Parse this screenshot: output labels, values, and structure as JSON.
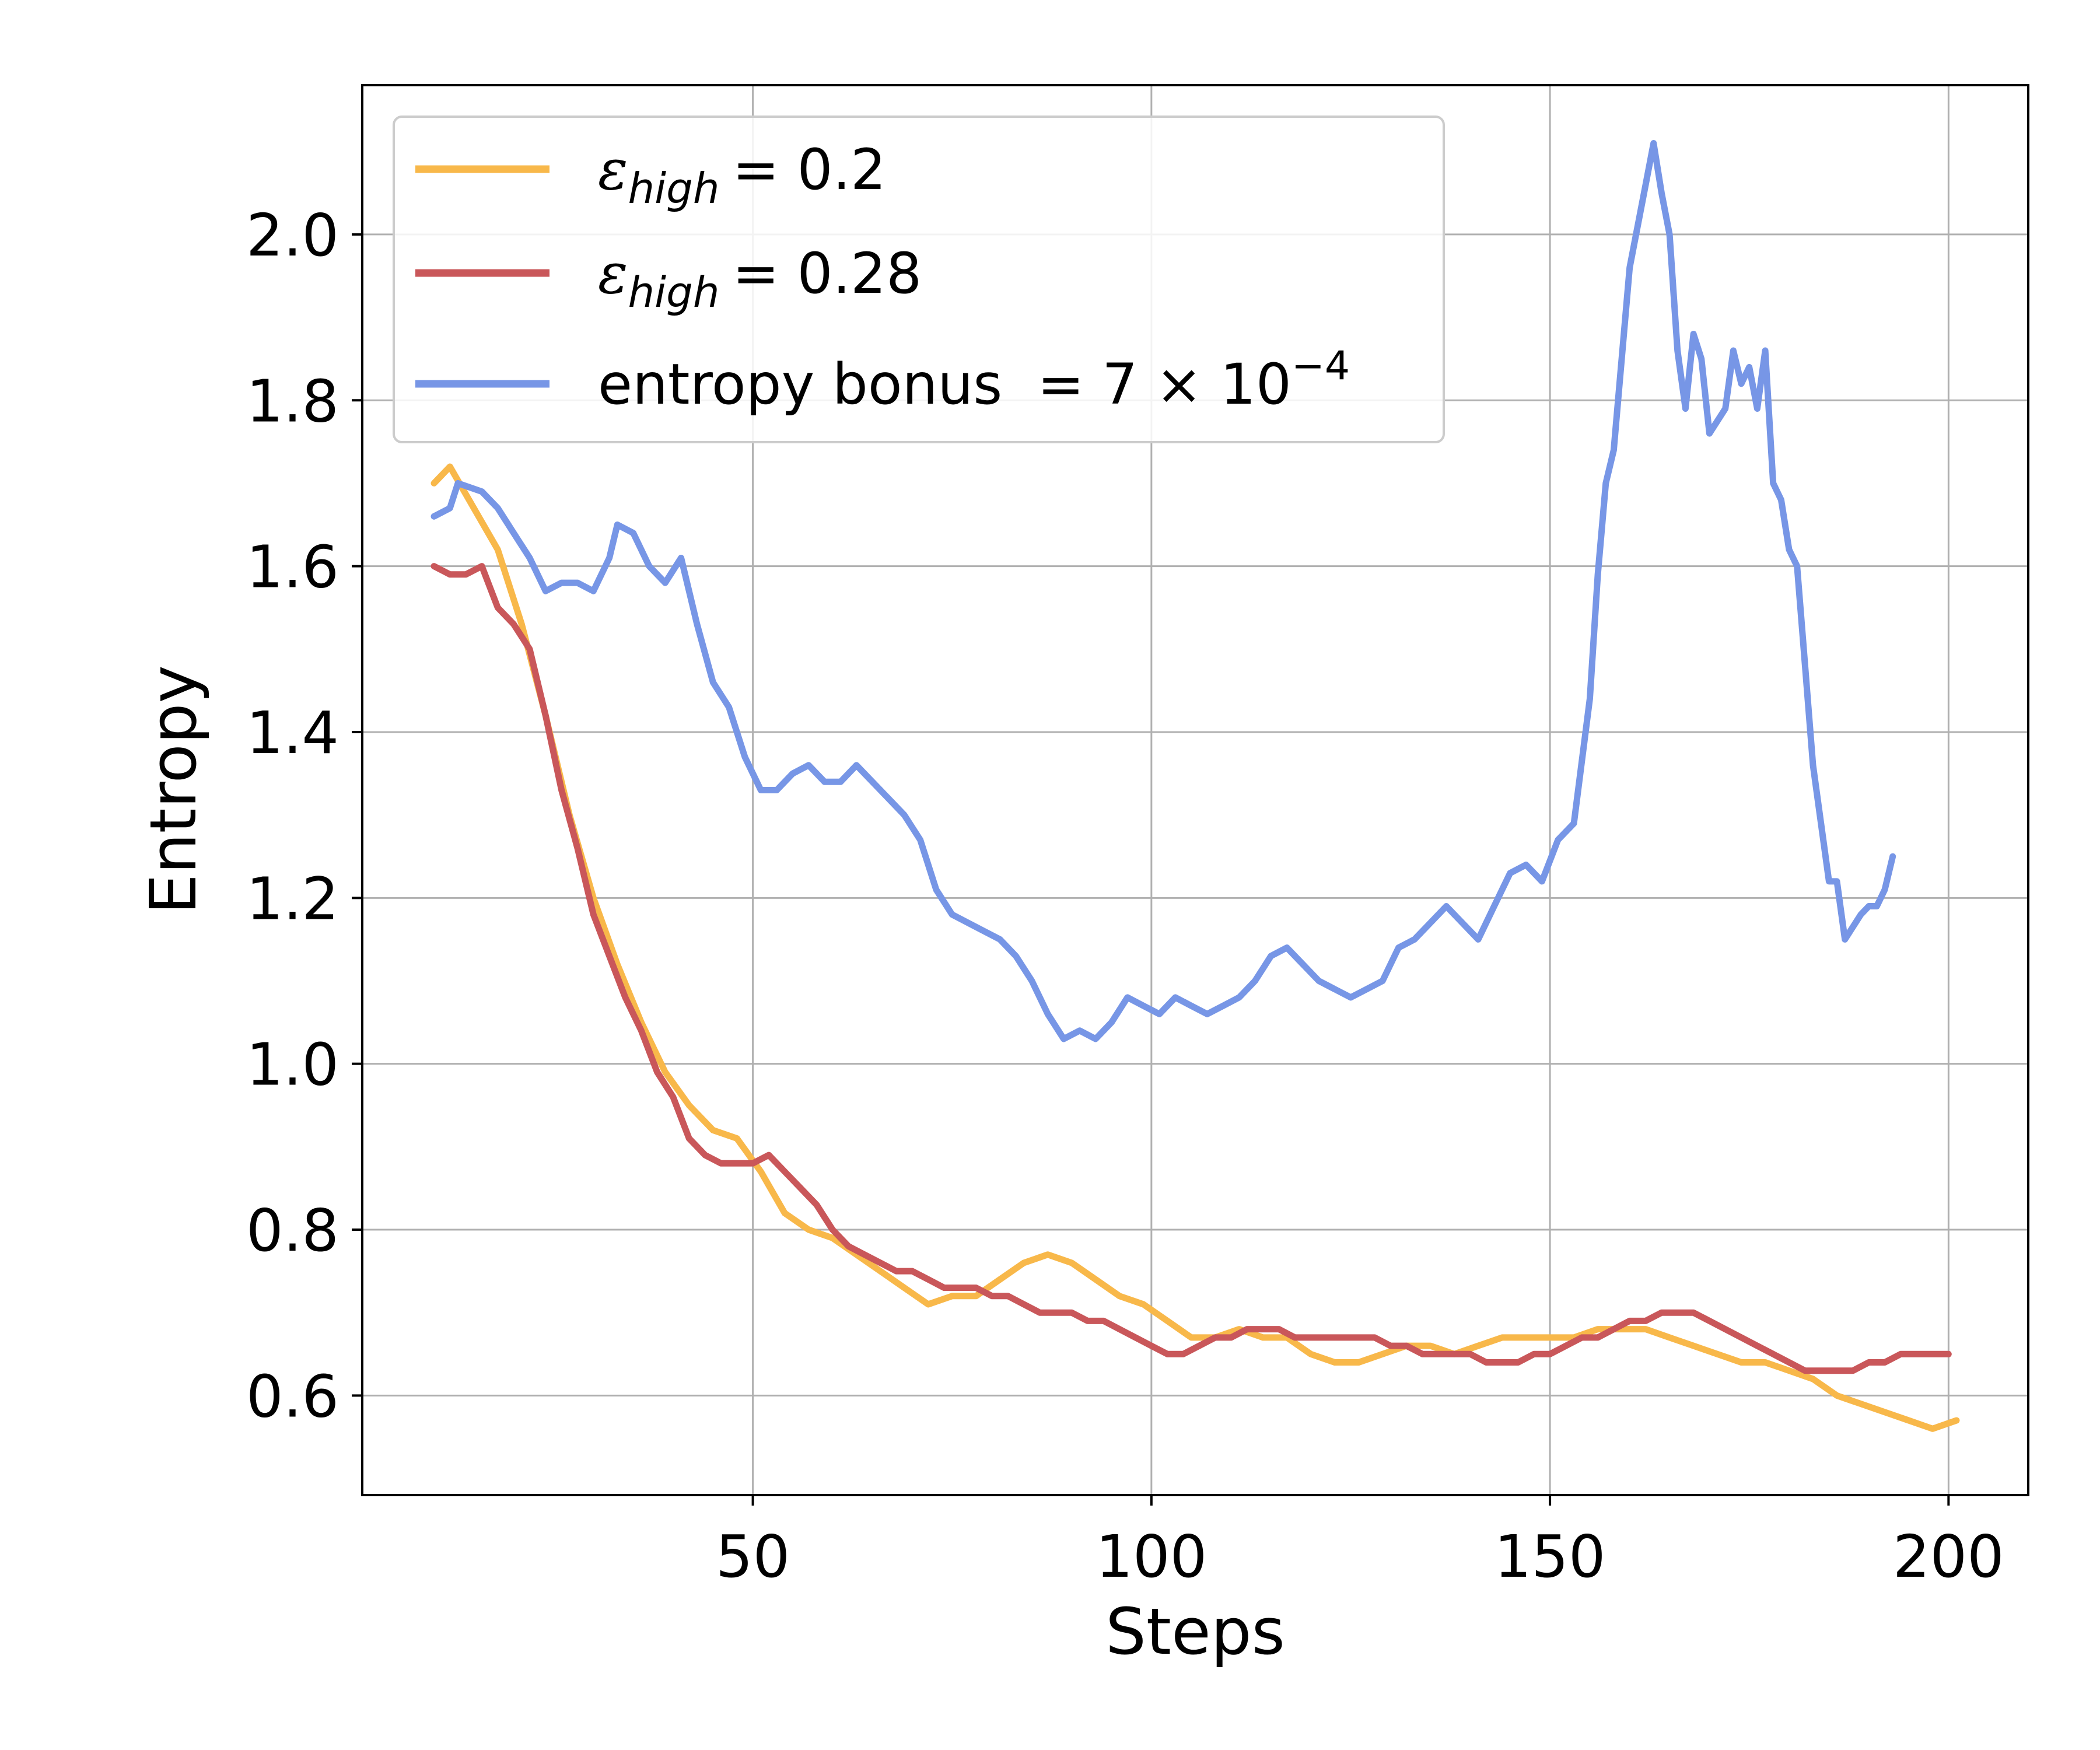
{
  "chart_data": {
    "type": "line",
    "title": "",
    "xlabel": "Steps",
    "ylabel": "Entropy",
    "xlim": [
      1,
      210
    ],
    "ylim": [
      0.48,
      2.18
    ],
    "xticks": [
      50,
      100,
      150,
      200
    ],
    "xtick_labels": [
      "50",
      "100",
      "150",
      "200"
    ],
    "yticks": [
      0.6,
      0.8,
      1.0,
      1.2,
      1.4,
      1.6,
      1.8,
      2.0
    ],
    "ytick_labels": [
      "0.6",
      "0.8",
      "1.0",
      "1.2",
      "1.4",
      "1.6",
      "1.8",
      "2.0"
    ],
    "grid": true,
    "legend_position": "upper-left",
    "series": [
      {
        "name": "ε_high = 0.2",
        "legend_parts": {
          "symbol": "ε",
          "subscript": "high",
          "rest": "= 0.2"
        },
        "color": "#f8b84a",
        "points": [
          [
            10,
            1.7
          ],
          [
            12,
            1.72
          ],
          [
            15,
            1.67
          ],
          [
            18,
            1.62
          ],
          [
            21,
            1.53
          ],
          [
            24,
            1.42
          ],
          [
            27,
            1.3
          ],
          [
            30,
            1.2
          ],
          [
            33,
            1.12
          ],
          [
            36,
            1.05
          ],
          [
            39,
            0.99
          ],
          [
            42,
            0.95
          ],
          [
            45,
            0.92
          ],
          [
            48,
            0.91
          ],
          [
            51,
            0.87
          ],
          [
            54,
            0.82
          ],
          [
            57,
            0.8
          ],
          [
            60,
            0.79
          ],
          [
            63,
            0.77
          ],
          [
            66,
            0.75
          ],
          [
            69,
            0.73
          ],
          [
            72,
            0.71
          ],
          [
            75,
            0.72
          ],
          [
            78,
            0.72
          ],
          [
            81,
            0.74
          ],
          [
            84,
            0.76
          ],
          [
            87,
            0.77
          ],
          [
            90,
            0.76
          ],
          [
            93,
            0.74
          ],
          [
            96,
            0.72
          ],
          [
            99,
            0.71
          ],
          [
            102,
            0.69
          ],
          [
            105,
            0.67
          ],
          [
            108,
            0.67
          ],
          [
            111,
            0.68
          ],
          [
            114,
            0.67
          ],
          [
            117,
            0.67
          ],
          [
            120,
            0.65
          ],
          [
            123,
            0.64
          ],
          [
            126,
            0.64
          ],
          [
            129,
            0.65
          ],
          [
            132,
            0.66
          ],
          [
            135,
            0.66
          ],
          [
            138,
            0.65
          ],
          [
            141,
            0.66
          ],
          [
            144,
            0.67
          ],
          [
            147,
            0.67
          ],
          [
            150,
            0.67
          ],
          [
            153,
            0.67
          ],
          [
            156,
            0.68
          ],
          [
            159,
            0.68
          ],
          [
            162,
            0.68
          ],
          [
            165,
            0.67
          ],
          [
            168,
            0.66
          ],
          [
            171,
            0.65
          ],
          [
            174,
            0.64
          ],
          [
            177,
            0.64
          ],
          [
            180,
            0.63
          ],
          [
            183,
            0.62
          ],
          [
            186,
            0.6
          ],
          [
            189,
            0.59
          ],
          [
            192,
            0.58
          ],
          [
            195,
            0.57
          ],
          [
            198,
            0.56
          ],
          [
            201,
            0.57
          ]
        ]
      },
      {
        "name": "ε_high = 0.28",
        "legend_parts": {
          "symbol": "ε",
          "subscript": "high",
          "rest": "= 0.28"
        },
        "color": "#c9575a",
        "points": [
          [
            10,
            1.6
          ],
          [
            12,
            1.59
          ],
          [
            14,
            1.59
          ],
          [
            16,
            1.6
          ],
          [
            18,
            1.55
          ],
          [
            20,
            1.53
          ],
          [
            22,
            1.5
          ],
          [
            24,
            1.42
          ],
          [
            26,
            1.33
          ],
          [
            28,
            1.26
          ],
          [
            30,
            1.18
          ],
          [
            32,
            1.13
          ],
          [
            34,
            1.08
          ],
          [
            36,
            1.04
          ],
          [
            38,
            0.99
          ],
          [
            40,
            0.96
          ],
          [
            42,
            0.91
          ],
          [
            44,
            0.89
          ],
          [
            46,
            0.88
          ],
          [
            48,
            0.88
          ],
          [
            50,
            0.88
          ],
          [
            52,
            0.89
          ],
          [
            54,
            0.87
          ],
          [
            56,
            0.85
          ],
          [
            58,
            0.83
          ],
          [
            60,
            0.8
          ],
          [
            62,
            0.78
          ],
          [
            64,
            0.77
          ],
          [
            66,
            0.76
          ],
          [
            68,
            0.75
          ],
          [
            70,
            0.75
          ],
          [
            72,
            0.74
          ],
          [
            74,
            0.73
          ],
          [
            76,
            0.73
          ],
          [
            78,
            0.73
          ],
          [
            80,
            0.72
          ],
          [
            82,
            0.72
          ],
          [
            84,
            0.71
          ],
          [
            86,
            0.7
          ],
          [
            88,
            0.7
          ],
          [
            90,
            0.7
          ],
          [
            92,
            0.69
          ],
          [
            94,
            0.69
          ],
          [
            96,
            0.68
          ],
          [
            98,
            0.67
          ],
          [
            100,
            0.66
          ],
          [
            102,
            0.65
          ],
          [
            104,
            0.65
          ],
          [
            106,
            0.66
          ],
          [
            108,
            0.67
          ],
          [
            110,
            0.67
          ],
          [
            112,
            0.68
          ],
          [
            114,
            0.68
          ],
          [
            116,
            0.68
          ],
          [
            118,
            0.67
          ],
          [
            120,
            0.67
          ],
          [
            122,
            0.67
          ],
          [
            124,
            0.67
          ],
          [
            126,
            0.67
          ],
          [
            128,
            0.67
          ],
          [
            130,
            0.66
          ],
          [
            132,
            0.66
          ],
          [
            134,
            0.65
          ],
          [
            136,
            0.65
          ],
          [
            138,
            0.65
          ],
          [
            140,
            0.65
          ],
          [
            142,
            0.64
          ],
          [
            144,
            0.64
          ],
          [
            146,
            0.64
          ],
          [
            148,
            0.65
          ],
          [
            150,
            0.65
          ],
          [
            152,
            0.66
          ],
          [
            154,
            0.67
          ],
          [
            156,
            0.67
          ],
          [
            158,
            0.68
          ],
          [
            160,
            0.69
          ],
          [
            162,
            0.69
          ],
          [
            164,
            0.7
          ],
          [
            166,
            0.7
          ],
          [
            168,
            0.7
          ],
          [
            170,
            0.69
          ],
          [
            172,
            0.68
          ],
          [
            174,
            0.67
          ],
          [
            176,
            0.66
          ],
          [
            178,
            0.65
          ],
          [
            180,
            0.64
          ],
          [
            182,
            0.63
          ],
          [
            184,
            0.63
          ],
          [
            186,
            0.63
          ],
          [
            188,
            0.63
          ],
          [
            190,
            0.64
          ],
          [
            192,
            0.64
          ],
          [
            194,
            0.65
          ],
          [
            196,
            0.65
          ],
          [
            198,
            0.65
          ],
          [
            200,
            0.65
          ]
        ]
      },
      {
        "name": "entropy bonus = 7 × 10⁻⁴",
        "legend_parts": {
          "text": "entropy bonus",
          "rest": "= 7 × 10",
          "exponent": "−4"
        },
        "color": "#7796e6",
        "points": [
          [
            10,
            1.66
          ],
          [
            12,
            1.67
          ],
          [
            13,
            1.7
          ],
          [
            16,
            1.69
          ],
          [
            18,
            1.67
          ],
          [
            20,
            1.64
          ],
          [
            22,
            1.61
          ],
          [
            24,
            1.57
          ],
          [
            26,
            1.58
          ],
          [
            28,
            1.58
          ],
          [
            30,
            1.57
          ],
          [
            32,
            1.61
          ],
          [
            33,
            1.65
          ],
          [
            35,
            1.64
          ],
          [
            37,
            1.6
          ],
          [
            39,
            1.58
          ],
          [
            41,
            1.61
          ],
          [
            43,
            1.53
          ],
          [
            45,
            1.46
          ],
          [
            47,
            1.43
          ],
          [
            49,
            1.37
          ],
          [
            51,
            1.33
          ],
          [
            53,
            1.33
          ],
          [
            55,
            1.35
          ],
          [
            57,
            1.36
          ],
          [
            59,
            1.34
          ],
          [
            61,
            1.34
          ],
          [
            63,
            1.36
          ],
          [
            65,
            1.34
          ],
          [
            67,
            1.32
          ],
          [
            69,
            1.3
          ],
          [
            71,
            1.27
          ],
          [
            73,
            1.21
          ],
          [
            75,
            1.18
          ],
          [
            77,
            1.17
          ],
          [
            79,
            1.16
          ],
          [
            81,
            1.15
          ],
          [
            83,
            1.13
          ],
          [
            85,
            1.1
          ],
          [
            87,
            1.06
          ],
          [
            89,
            1.03
          ],
          [
            91,
            1.04
          ],
          [
            93,
            1.03
          ],
          [
            95,
            1.05
          ],
          [
            97,
            1.08
          ],
          [
            99,
            1.07
          ],
          [
            101,
            1.06
          ],
          [
            103,
            1.08
          ],
          [
            105,
            1.07
          ],
          [
            107,
            1.06
          ],
          [
            109,
            1.07
          ],
          [
            111,
            1.08
          ],
          [
            113,
            1.1
          ],
          [
            115,
            1.13
          ],
          [
            117,
            1.14
          ],
          [
            119,
            1.12
          ],
          [
            121,
            1.1
          ],
          [
            123,
            1.09
          ],
          [
            125,
            1.08
          ],
          [
            127,
            1.09
          ],
          [
            129,
            1.1
          ],
          [
            131,
            1.14
          ],
          [
            133,
            1.15
          ],
          [
            135,
            1.17
          ],
          [
            137,
            1.19
          ],
          [
            139,
            1.17
          ],
          [
            141,
            1.15
          ],
          [
            143,
            1.19
          ],
          [
            145,
            1.23
          ],
          [
            147,
            1.24
          ],
          [
            149,
            1.22
          ],
          [
            151,
            1.27
          ],
          [
            153,
            1.29
          ],
          [
            155,
            1.44
          ],
          [
            156,
            1.59
          ],
          [
            157,
            1.7
          ],
          [
            158,
            1.74
          ],
          [
            160,
            1.96
          ],
          [
            162,
            2.06
          ],
          [
            163,
            2.11
          ],
          [
            164,
            2.05
          ],
          [
            165,
            2.0
          ],
          [
            166,
            1.86
          ],
          [
            167,
            1.79
          ],
          [
            168,
            1.88
          ],
          [
            169,
            1.85
          ],
          [
            170,
            1.76
          ],
          [
            172,
            1.79
          ],
          [
            173,
            1.86
          ],
          [
            174,
            1.82
          ],
          [
            175,
            1.84
          ],
          [
            176,
            1.79
          ],
          [
            177,
            1.86
          ],
          [
            178,
            1.7
          ],
          [
            179,
            1.68
          ],
          [
            180,
            1.62
          ],
          [
            181,
            1.6
          ],
          [
            182,
            1.48
          ],
          [
            183,
            1.36
          ],
          [
            184,
            1.29
          ],
          [
            185,
            1.22
          ],
          [
            186,
            1.22
          ],
          [
            187,
            1.15
          ],
          [
            189,
            1.18
          ],
          [
            190,
            1.19
          ],
          [
            191,
            1.19
          ],
          [
            192,
            1.21
          ],
          [
            193,
            1.25
          ]
        ]
      }
    ]
  }
}
